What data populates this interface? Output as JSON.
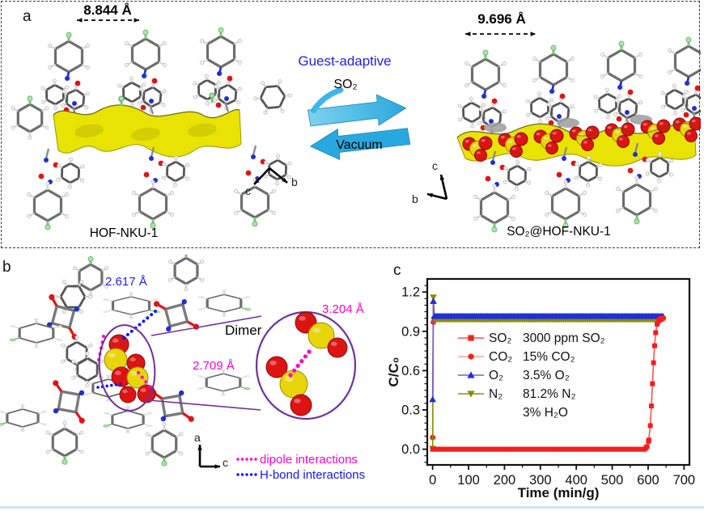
{
  "panel_a": {
    "label": "a",
    "left_structure": {
      "distance_label": "8.844 Å",
      "name": "HOF-NKU-1",
      "axis": {
        "down_left_letter": "c",
        "down_right_letter": "b"
      }
    },
    "transition": {
      "title": "Guest-adaptive",
      "forward_label": "SO₂",
      "reverse_label": "Vacuum"
    },
    "right_structure": {
      "distance_label": "9.696 Å",
      "name": "SO₂@HOF-NKU-1",
      "axis": {
        "up_letter": "c",
        "down_left_letter": "b"
      }
    }
  },
  "panel_b": {
    "label": "b",
    "measurements": {
      "hbond_distance": "2.617 Å",
      "dipole_distance": "2.709 Å",
      "dimer_distance": "3.204 Å"
    },
    "dimer_label": "Dimer",
    "axis": {
      "up_letter": "a",
      "right_letter": "c"
    },
    "legend": [
      {
        "label": "dipole interactions",
        "color": "#ff00cc"
      },
      {
        "label": "H-bond interactions",
        "color": "#1414ff"
      }
    ]
  },
  "panel_c": {
    "label": "c",
    "chart_data": {
      "type": "line",
      "title": "",
      "xlabel": "Time (min/g)",
      "ylabel": "C/C₀",
      "xlim": [
        -15,
        715
      ],
      "ylim": [
        -0.12,
        1.3
      ],
      "xticks": [
        0,
        100,
        200,
        300,
        400,
        500,
        600,
        700
      ],
      "yticks": [
        0.0,
        0.3,
        0.6,
        0.9,
        1.2
      ],
      "x_minor_step": 50,
      "y_minor_step": 0.05,
      "grid": false,
      "legend_position": "inside-left",
      "legend_order": [
        "SO₂",
        "CO₂",
        "O₂",
        "N₂"
      ],
      "draw_order": [
        1,
        3,
        2,
        0
      ],
      "series": [
        {
          "name": "SO₂",
          "marker": "square",
          "marker_color": "#f81d1d",
          "line_color": "#f95050",
          "marker_step": 4,
          "breakpoints": [
            [
              0,
              0
            ],
            [
              590,
              0
            ],
            [
              597,
              0.02
            ],
            [
              602,
              0.07
            ],
            [
              606,
              0.18
            ],
            [
              609,
              0.33
            ],
            [
              612,
              0.5
            ],
            [
              615,
              0.66
            ],
            [
              618,
              0.79
            ],
            [
              621,
              0.89
            ],
            [
              625,
              0.955
            ],
            [
              630,
              0.985
            ],
            [
              637,
              1.0
            ],
            [
              641,
              1.0
            ]
          ]
        },
        {
          "name": "CO₂",
          "marker": "circle",
          "marker_color": "#f81d1d",
          "line_color": "#f8a0a0",
          "marker_step": 4,
          "breakpoints": [
            [
              0,
              0.09
            ],
            [
              2,
              0.97
            ],
            [
              5,
              1.0
            ],
            [
              641,
              1.0
            ]
          ]
        },
        {
          "name": "O₂",
          "marker": "triangle-up",
          "marker_color": "#1f2fd8",
          "line_color": "#7a5ad0",
          "marker_step": 4,
          "breakpoints": [
            [
              0,
              0.38
            ],
            [
              2,
              1.13
            ],
            [
              5,
              1.015
            ],
            [
              641,
              1.015
            ]
          ]
        },
        {
          "name": "N₂",
          "marker": "triangle-down",
          "marker_color": "#8d8d00",
          "line_color": "#8d8d00",
          "marker_step": 4,
          "breakpoints": [
            [
              0,
              0.005
            ],
            [
              2,
              1.16
            ],
            [
              5,
              0.992
            ],
            [
              641,
              0.992
            ]
          ]
        }
      ],
      "annotations": [
        "3000 ppm SO₂",
        "15% CO₂",
        "3.5% O₂",
        "81.2% N₂",
        "3% H₂O"
      ]
    }
  },
  "colors": {
    "blue_text": "#1f1fe8",
    "magenta": "#ff00cc",
    "hbond_blue": "#1414ff",
    "arrow_cyan": "#29a8df",
    "arrow_cyan_light": "#7fd2ef",
    "surface_yellow": "#e9e304",
    "purple": "#7030a0",
    "bottom_rule": "#cfe4f4"
  }
}
